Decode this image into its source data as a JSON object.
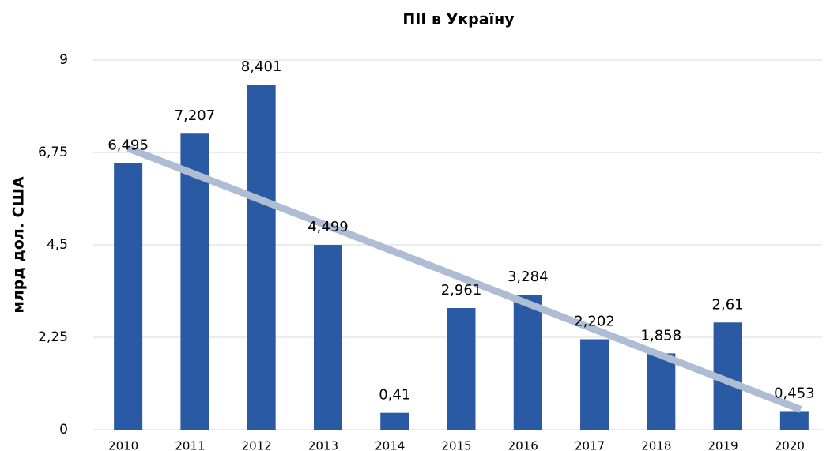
{
  "chart_data": {
    "type": "bar",
    "title": "ПІІ в Україну",
    "y_label": "млрд дол. США",
    "categories": [
      "2010",
      "2011",
      "2012",
      "2013",
      "2014",
      "2015",
      "2016",
      "2017",
      "2018",
      "2019",
      "2020"
    ],
    "values": [
      6.495,
      7.207,
      8.401,
      4.499,
      0.41,
      2.961,
      3.284,
      2.202,
      1.858,
      2.61,
      0.453
    ],
    "value_labels": [
      "6,495",
      "7,207",
      "8,401",
      "4,499",
      "0,41",
      "2,961",
      "3,284",
      "2,202",
      "1,858",
      "2,61",
      "0,453"
    ],
    "color": "#2a5aa3",
    "trendline": true,
    "trendline_color": "#aebdd4",
    "ylim": [
      0,
      9
    ],
    "yticks": [
      0,
      {
        "value": 2.25,
        "label": "2,25"
      },
      {
        "value": 4.5,
        "label": "4,5"
      },
      {
        "value": 6.75,
        "label": "6,75"
      },
      9
    ],
    "grid": true
  }
}
